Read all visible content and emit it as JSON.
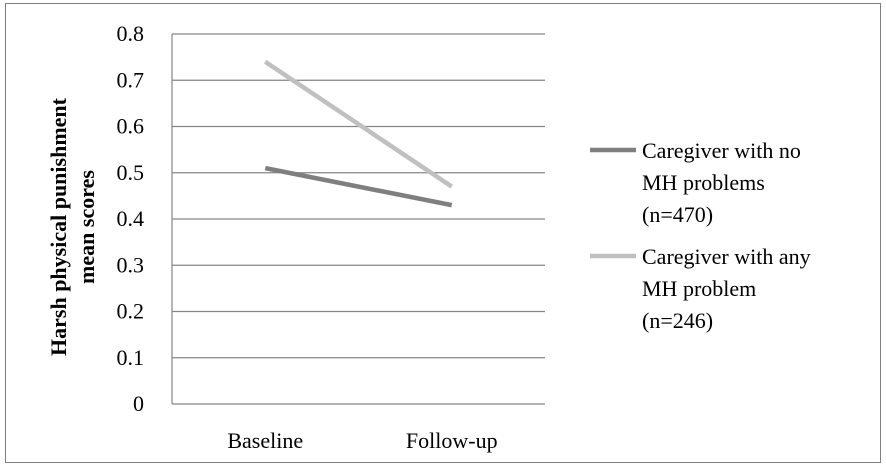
{
  "chart_data": {
    "type": "line",
    "categories": [
      "Baseline",
      "Follow-up"
    ],
    "series": [
      {
        "name": "Caregiver with no MH problems (n=470)",
        "name_lines": [
          "Caregiver with no",
          "MH problems",
          "(n=470)"
        ],
        "values": [
          0.51,
          0.43
        ],
        "color": "#7f7f7f"
      },
      {
        "name": "Caregiver with any MH problem (n=246)",
        "name_lines": [
          "Caregiver with any",
          "MH problem",
          "(n=246)"
        ],
        "values": [
          0.74,
          0.47
        ],
        "color": "#c0c0c0"
      }
    ],
    "title": "",
    "xlabel": "",
    "ylabel": "Harsh physical punishment mean scores",
    "ylabel_lines": [
      "Harsh physical punishment",
      "mean scores"
    ],
    "ylim": [
      0,
      0.8
    ],
    "yticks": [
      "0",
      "0.1",
      "0.2",
      "0.3",
      "0.4",
      "0.5",
      "0.6",
      "0.7",
      "0.8"
    ],
    "grid": true,
    "gridline_color": "#868686",
    "legend_position": "right"
  }
}
